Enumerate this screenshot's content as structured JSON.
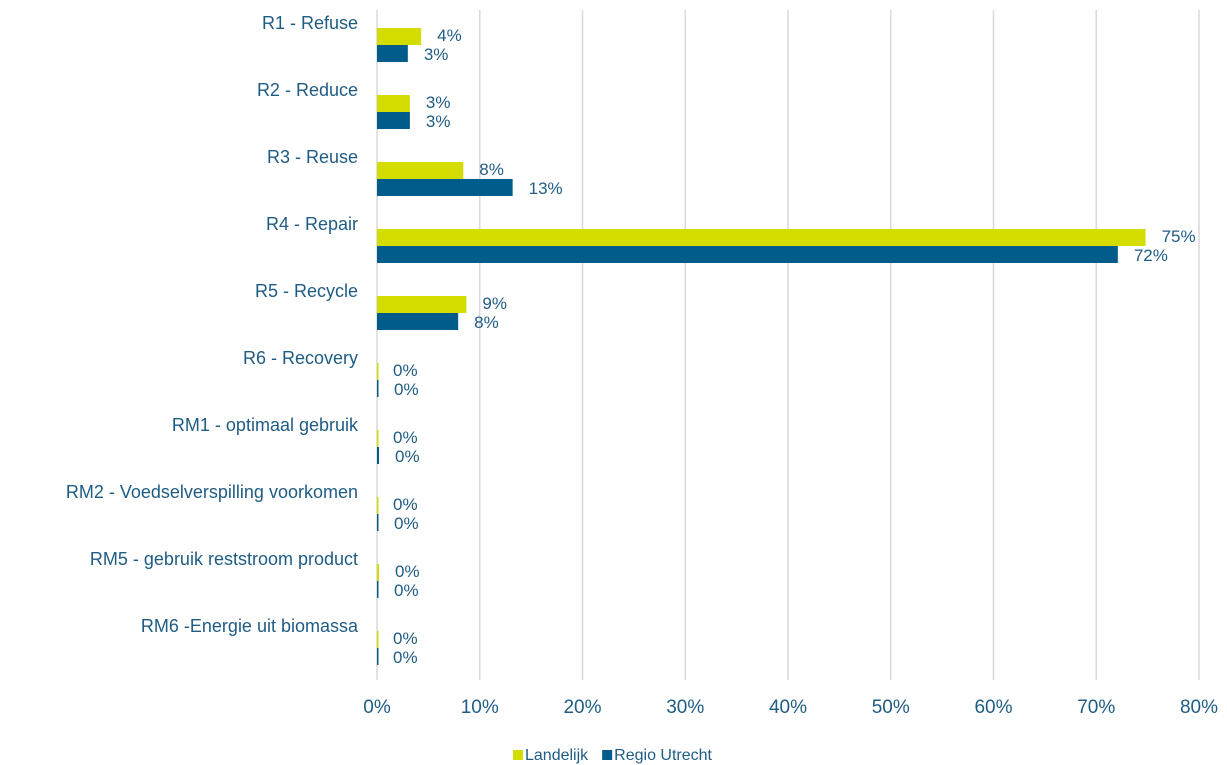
{
  "chart_data": {
    "type": "bar",
    "orientation": "horizontal",
    "categories": [
      "R1 - Refuse",
      "R2 - Reduce",
      "R3 - Reuse",
      "R4 - Repair",
      "R5 - Recycle",
      "R6 - Recovery",
      "RM1 - optimaal gebruik",
      "RM2 - Voedselverspilling voorkomen",
      "RM5 - gebruik reststroom product",
      "RM6 -Energie uit biomassa"
    ],
    "series": [
      {
        "name": "Landelijk",
        "color": "#d3de00",
        "values": [
          4.3,
          3.2,
          8.4,
          74.8,
          8.7,
          0,
          0,
          0,
          0.2,
          0
        ],
        "value_labels": [
          "4%",
          "3%",
          "8%",
          "75%",
          "9%",
          "0%",
          "0%",
          "0%",
          "0%",
          "0%"
        ]
      },
      {
        "name": "Regio Utrecht",
        "color": "#005c8a",
        "values": [
          3.0,
          3.2,
          13.2,
          72.1,
          7.9,
          0.1,
          0.2,
          0.1,
          0.1,
          0
        ],
        "value_labels": [
          "3%",
          "3%",
          "13%",
          "72%",
          "8%",
          "0%",
          "0%",
          "0%",
          "0%",
          "0%"
        ]
      }
    ],
    "xlim": [
      0,
      80
    ],
    "xticks": [
      {
        "value": 0,
        "label": "0%"
      },
      {
        "value": 10,
        "label": "10%"
      },
      {
        "value": 20,
        "label": "20%"
      },
      {
        "value": 30,
        "label": "30%"
      },
      {
        "value": 40,
        "label": "40%"
      },
      {
        "value": 50,
        "label": "50%"
      },
      {
        "value": 60,
        "label": "60%"
      },
      {
        "value": 70,
        "label": "70%"
      },
      {
        "value": 80,
        "label": "80%"
      }
    ],
    "grid": true,
    "legend": "bottom"
  }
}
